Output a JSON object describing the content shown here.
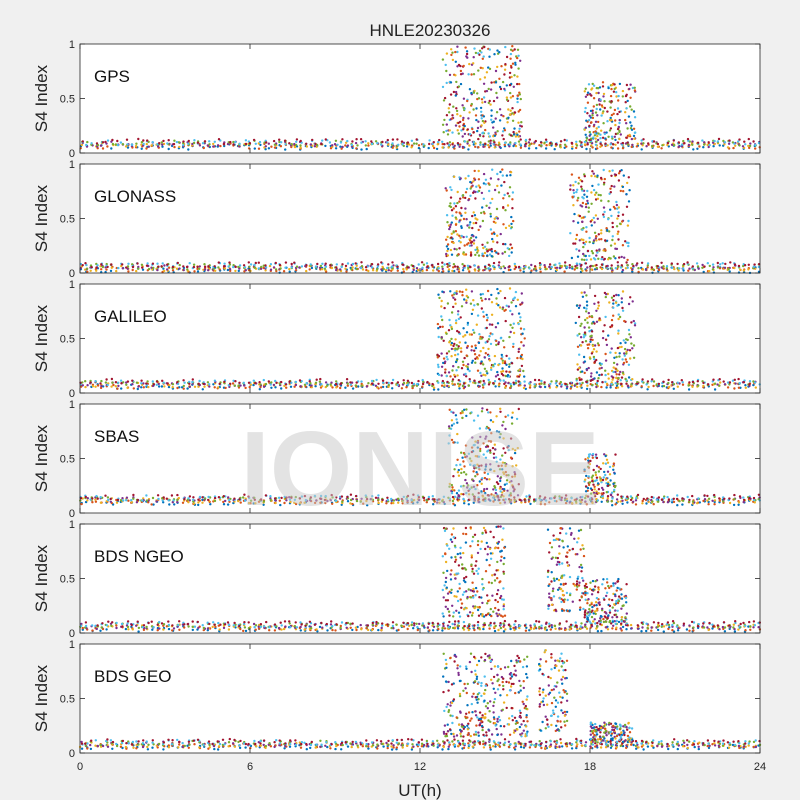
{
  "watermark": "IONISE",
  "chart_data": {
    "type": "scatter",
    "title": "HNLE20230326",
    "xlabel": "UT(h)",
    "ylabel": "S4 Index",
    "xlim": [
      0,
      24
    ],
    "ylim": [
      0,
      1
    ],
    "xticks": [
      "0",
      "6",
      "12",
      "18",
      "24"
    ],
    "yticks": [
      "0",
      "0.5",
      "1"
    ],
    "grid": false,
    "series_colors": [
      "#0072bd",
      "#d95319",
      "#edb120",
      "#7e2f8e",
      "#77ac30",
      "#4dbeee",
      "#a2142f"
    ],
    "panels": [
      {
        "label": "GPS",
        "baseline": 0.08,
        "bursts": [
          {
            "x": [
              12.8,
              15.6
            ],
            "y": [
              0.15,
              0.98
            ]
          },
          {
            "x": [
              17.8,
              19.6
            ],
            "y": [
              0.12,
              0.65
            ]
          }
        ]
      },
      {
        "label": "GLONASS",
        "baseline": 0.05,
        "bursts": [
          {
            "x": [
              12.9,
              15.3
            ],
            "y": [
              0.15,
              0.96
            ]
          },
          {
            "x": [
              17.3,
              19.4
            ],
            "y": [
              0.12,
              0.95
            ]
          }
        ]
      },
      {
        "label": "GALILEO",
        "baseline": 0.08,
        "bursts": [
          {
            "x": [
              12.6,
              15.7
            ],
            "y": [
              0.15,
              0.96
            ]
          },
          {
            "x": [
              17.5,
              19.6
            ],
            "y": [
              0.12,
              0.94
            ]
          }
        ]
      },
      {
        "label": "SBAS",
        "baseline": 0.12,
        "bursts": [
          {
            "x": [
              13.0,
              15.5
            ],
            "y": [
              0.15,
              0.96
            ]
          },
          {
            "x": [
              17.8,
              18.9
            ],
            "y": [
              0.15,
              0.55
            ]
          }
        ]
      },
      {
        "label": "BDS NGEO",
        "baseline": 0.06,
        "bursts": [
          {
            "x": [
              12.8,
              15.0
            ],
            "y": [
              0.15,
              0.98
            ]
          },
          {
            "x": [
              16.5,
              17.8
            ],
            "y": [
              0.2,
              0.97
            ]
          },
          {
            "x": [
              17.8,
              19.3
            ],
            "y": [
              0.1,
              0.5
            ]
          }
        ]
      },
      {
        "label": "BDS GEO",
        "baseline": 0.08,
        "bursts": [
          {
            "x": [
              12.8,
              15.8
            ],
            "y": [
              0.15,
              0.92
            ]
          },
          {
            "x": [
              16.2,
              17.2
            ],
            "y": [
              0.2,
              0.95
            ]
          },
          {
            "x": [
              18.0,
              19.5
            ],
            "y": [
              0.1,
              0.28
            ]
          }
        ]
      }
    ]
  }
}
